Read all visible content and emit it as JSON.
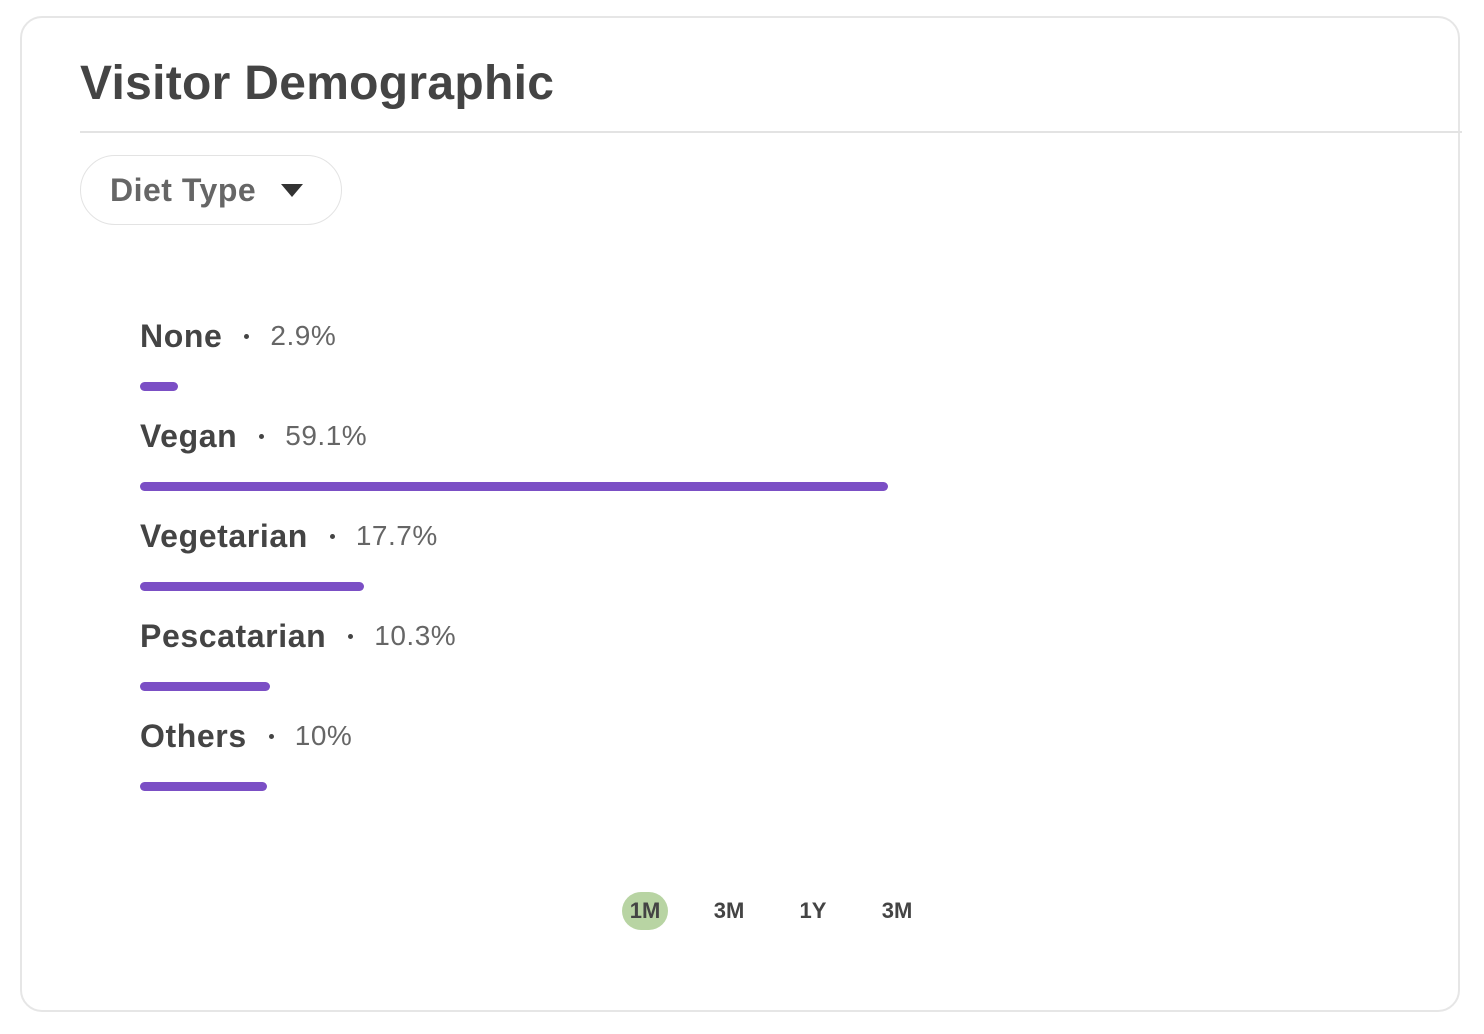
{
  "card": {
    "title": "Visitor Demographic"
  },
  "filter": {
    "selected": "Diet Type",
    "icon": "caret-down-icon"
  },
  "colors": {
    "bar": "#7b4fc5",
    "active_range": "#b8d4a3",
    "text_primary": "#444444",
    "text_secondary": "#666666"
  },
  "chart_data": {
    "type": "bar",
    "categories": [
      "None",
      "Vegan",
      "Vegetarian",
      "Pescatarian",
      "Others"
    ],
    "values": [
      2.9,
      59.1,
      17.7,
      10.3,
      10
    ],
    "value_labels": [
      "2.9%",
      "59.1%",
      "17.7%",
      "10.3%",
      "10%"
    ],
    "unit": "%"
  },
  "ranges": {
    "items": [
      "1M",
      "3M",
      "1Y",
      "3M"
    ],
    "active_index": 0
  }
}
